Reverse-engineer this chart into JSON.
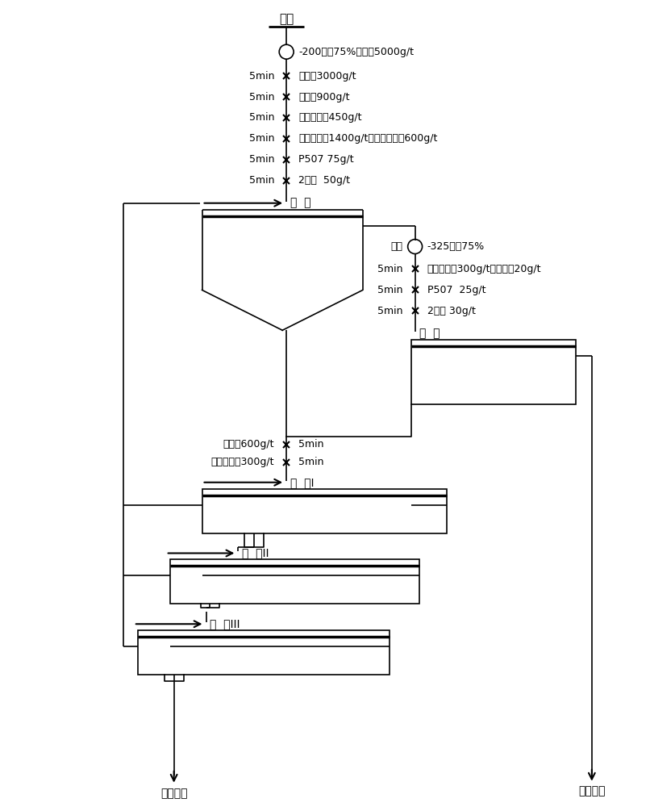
{
  "bg_color": "#ffffff",
  "text_color": "#000000",
  "line_color": "#000000",
  "labels": {
    "raw_ore": "原矿",
    "grind1_note": "-200目分75%，确祲5000g/t",
    "rough_label": "粗  选",
    "scan_label": "扫  选",
    "clean1_label": "精  选I",
    "clean2_label": "精  选II",
    "clean3_label": "精  选III",
    "regrind_label": "再磨",
    "regrind_note": "-325目分75%",
    "concentrate": "浮选精矿",
    "tailings": "浮选尾矿",
    "rough_reagents": [
      [
        "5min",
        "碳酸鑱3000g/t"
      ],
      [
        "5min",
        "水玻璃900g/t"
      ],
      [
        "5min",
        "六偏磷酸钓450g/t"
      ],
      [
        "5min",
        "水杨羟肌靀1400g/t，氧化石腊皋600g/t"
      ],
      [
        "5min",
        "P507 75g/t"
      ],
      [
        "5min",
        "2号油  50g/t"
      ]
    ],
    "scan_reagents": [
      [
        "5min",
        "苯甲羟肌酸300g/t，油酸钔20g/t"
      ],
      [
        "5min",
        "P507  25g/t"
      ],
      [
        "5min",
        "2号油 30g/t"
      ]
    ],
    "clean1_reagents": [
      [
        "水玻璃600g/t",
        "5min"
      ],
      [
        "六偏磷酸钓300g/t",
        "5min"
      ]
    ]
  }
}
